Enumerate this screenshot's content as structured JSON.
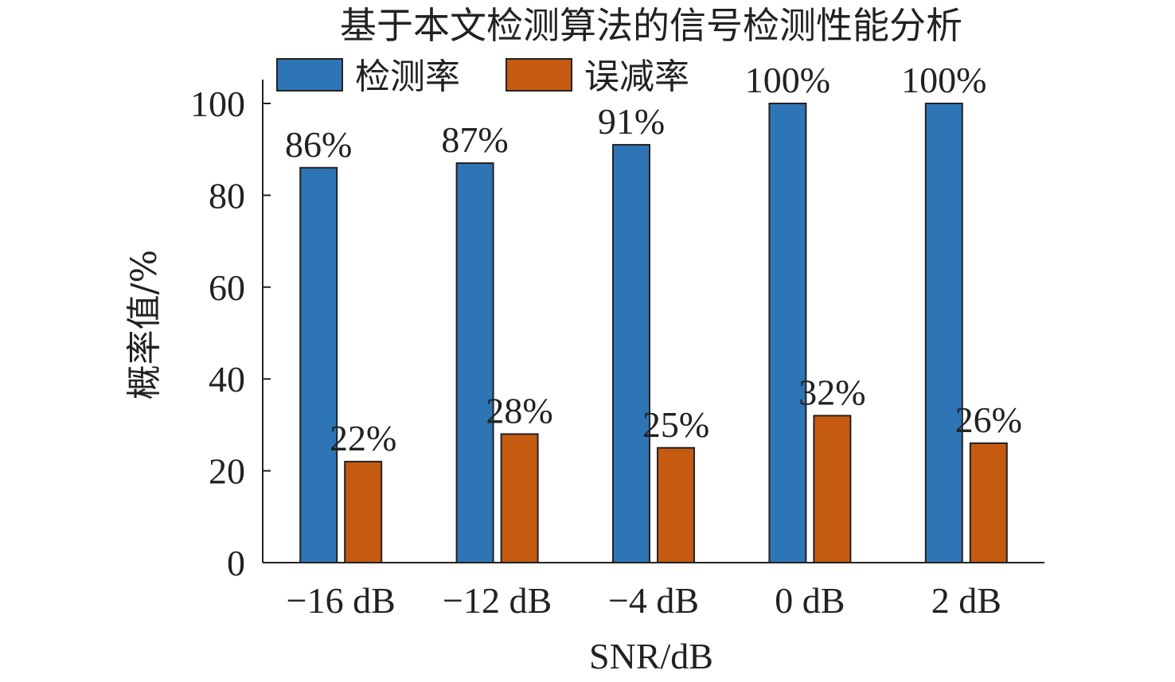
{
  "chart_data": {
    "type": "bar",
    "title": "基于本文检测算法的信号检测性能分析",
    "categories": [
      "−16 dB",
      "−12 dB",
      "−4 dB",
      "0 dB",
      "2 dB"
    ],
    "series": [
      {
        "name": "检测率",
        "color": "#2e75b6",
        "values": [
          86,
          87,
          91,
          100,
          100
        ],
        "labels": [
          "86%",
          "87%",
          "91%",
          "100%",
          "100%"
        ]
      },
      {
        "name": "误减率",
        "color": "#c55a11",
        "values": [
          22,
          28,
          25,
          32,
          26
        ],
        "labels": [
          "22%",
          "28%",
          "25%",
          "32%",
          "26%"
        ]
      }
    ],
    "xlabel": "SNR/dB",
    "ylabel": "概率值/%",
    "ylim": [
      0,
      100
    ],
    "yticks": [
      0,
      20,
      40,
      60,
      80,
      100
    ],
    "grid": false,
    "legend_position": "top"
  }
}
